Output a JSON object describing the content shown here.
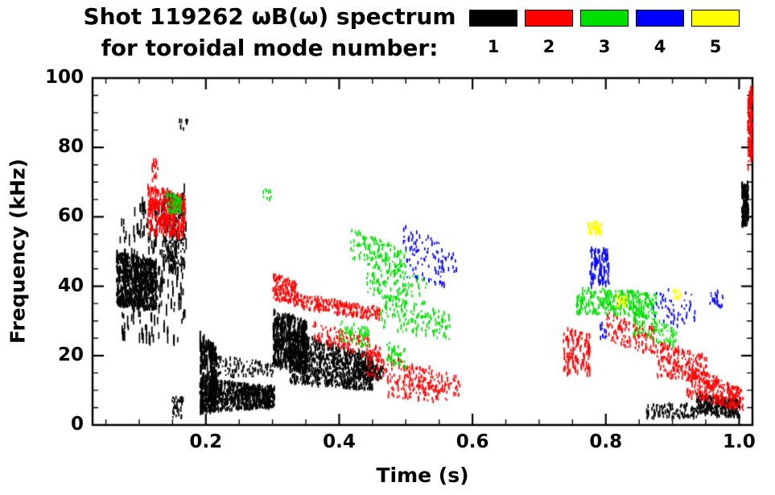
{
  "title": {
    "line1": "Shot 119262 ωB(ω) spectrum",
    "line2": "for toroidal mode number:"
  },
  "chart_data": {
    "type": "scatter",
    "title": "Shot 119262 ωB(ω) spectrum for toroidal mode number",
    "xlabel": "Time (s)",
    "ylabel": "Frequency (kHz)",
    "xlim": [
      0.03,
      1.02
    ],
    "ylim": [
      0,
      100
    ],
    "grid": false,
    "legend_position": "top-right",
    "x_major_ticks": [
      0.2,
      0.4,
      0.6,
      0.8,
      1.0
    ],
    "x_tick_labels": [
      "0.2",
      "0.4",
      "0.6",
      "0.8",
      "1.0"
    ],
    "x_minor_step": 0.05,
    "y_major_ticks": [
      0,
      20,
      40,
      60,
      80,
      100
    ],
    "y_tick_labels": [
      "0",
      "20",
      "40",
      "60",
      "80",
      "100"
    ],
    "y_minor_step": 5,
    "series": [
      {
        "name": "1",
        "color": "#000000",
        "clusters": [
          {
            "t": [
              0.065,
              0.125
            ],
            "fa": [
              34,
              50
            ],
            "fb": [
              33,
              47
            ],
            "n": 900
          },
          {
            "t": [
              0.07,
              0.17
            ],
            "fa": [
              24,
              62
            ],
            "fb": [
              24,
              69
            ],
            "n": 240,
            "len": [
              5,
              16
            ]
          },
          {
            "t": [
              0.135,
              0.168
            ],
            "fa": [
              44,
              66
            ],
            "fb": [
              44,
              65
            ],
            "n": 220
          },
          {
            "t": [
              0.158,
              0.172
            ],
            "fa": [
              84,
              88
            ],
            "fb": [
              85,
              88
            ],
            "n": 12
          },
          {
            "t": [
              0.148,
              0.165
            ],
            "fa": [
              2,
              8
            ],
            "fb": [
              2,
              8
            ],
            "n": 40
          },
          {
            "t": [
              0.19,
              0.215
            ],
            "fa": [
              4,
              26
            ],
            "fb": [
              4,
              22
            ],
            "n": 240,
            "len": [
              4,
              14
            ]
          },
          {
            "t": [
              0.205,
              0.302
            ],
            "fa": [
              4,
              13
            ],
            "fb": [
              5,
              11
            ],
            "n": 800
          },
          {
            "t": [
              0.21,
              0.3
            ],
            "fa": [
              14,
              20
            ],
            "fb": [
              14,
              18
            ],
            "n": 110
          },
          {
            "t": [
              0.3,
              0.35
            ],
            "fa": [
              17,
              33
            ],
            "fb": [
              15,
              30
            ],
            "n": 500,
            "len": [
              3,
              9
            ]
          },
          {
            "t": [
              0.325,
              0.45
            ],
            "fa": [
              12,
              27
            ],
            "fb": [
              10,
              20
            ],
            "n": 900
          },
          {
            "t": [
              0.42,
              0.465
            ],
            "fa": [
              13,
              19
            ],
            "fb": [
              13,
              17
            ],
            "n": 140
          },
          {
            "t": [
              0.86,
              0.935
            ],
            "fa": [
              2,
              6
            ],
            "fb": [
              2,
              6
            ],
            "n": 110
          },
          {
            "t": [
              0.935,
              1.0
            ],
            "fa": [
              3,
              9
            ],
            "fb": [
              2,
              7
            ],
            "n": 320
          },
          {
            "t": [
              1.003,
              1.013
            ],
            "fa": [
              57,
              70
            ],
            "fb": [
              58,
              70
            ],
            "n": 130,
            "len": [
              3,
              9
            ]
          }
        ]
      },
      {
        "name": "2",
        "color": "#ff0000",
        "clusters": [
          {
            "t": [
              0.112,
              0.168
            ],
            "fa": [
              55,
              69
            ],
            "fb": [
              54,
              66
            ],
            "n": 300,
            "len": [
              3,
              9
            ]
          },
          {
            "t": [
              0.118,
              0.128
            ],
            "fa": [
              70,
              78
            ],
            "fb": [
              70,
              77
            ],
            "n": 22
          },
          {
            "t": [
              0.3,
              0.335
            ],
            "fa": [
              36,
              44
            ],
            "fb": [
              35,
              41
            ],
            "n": 150
          },
          {
            "t": [
              0.33,
              0.46
            ],
            "fa": [
              34,
              38
            ],
            "fb": [
              30,
              34
            ],
            "n": 240
          },
          {
            "t": [
              0.36,
              0.46
            ],
            "fa": [
              24,
              30
            ],
            "fb": [
              18,
              24
            ],
            "n": 130
          },
          {
            "t": [
              0.44,
              0.58
            ],
            "fa": [
              14,
              22
            ],
            "fb": [
              8,
              14
            ],
            "n": 200
          },
          {
            "t": [
              0.47,
              0.565
            ],
            "fa": [
              8,
              13
            ],
            "fb": [
              6,
              10
            ],
            "n": 70
          },
          {
            "t": [
              0.735,
              0.775
            ],
            "fa": [
              14,
              28
            ],
            "fb": [
              14,
              26
            ],
            "n": 110,
            "len": [
              3,
              8
            ]
          },
          {
            "t": [
              0.8,
              0.875
            ],
            "fa": [
              24,
              33
            ],
            "fb": [
              20,
              28
            ],
            "n": 130
          },
          {
            "t": [
              0.875,
              0.95
            ],
            "fa": [
              14,
              24
            ],
            "fb": [
              12,
              20
            ],
            "n": 190
          },
          {
            "t": [
              0.92,
              1.005
            ],
            "fa": [
              8,
              18
            ],
            "fb": [
              4,
              10
            ],
            "n": 280
          },
          {
            "t": [
              1.012,
              1.023
            ],
            "fa": [
              74,
              97
            ],
            "fb": [
              75,
              97
            ],
            "n": 150,
            "len": [
              3,
              9
            ]
          }
        ]
      },
      {
        "name": "3",
        "color": "#00dd00",
        "clusters": [
          {
            "t": [
              0.14,
              0.162
            ],
            "fa": [
              61,
              67
            ],
            "fb": [
              61,
              66
            ],
            "n": 70
          },
          {
            "t": [
              0.285,
              0.297
            ],
            "fa": [
              65,
              68
            ],
            "fb": [
              65,
              68
            ],
            "n": 10
          },
          {
            "t": [
              0.415,
              0.5
            ],
            "fa": [
              48,
              57
            ],
            "fb": [
              42,
              50
            ],
            "n": 140
          },
          {
            "t": [
              0.44,
              0.53
            ],
            "fa": [
              38,
              47
            ],
            "fb": [
              34,
              42
            ],
            "n": 110
          },
          {
            "t": [
              0.46,
              0.565
            ],
            "fa": [
              28,
              38
            ],
            "fb": [
              24,
              32
            ],
            "n": 150
          },
          {
            "t": [
              0.4,
              0.445
            ],
            "fa": [
              24,
              30
            ],
            "fb": [
              22,
              28
            ],
            "n": 60
          },
          {
            "t": [
              0.47,
              0.5
            ],
            "fa": [
              18,
              24
            ],
            "fb": [
              16,
              22
            ],
            "n": 45
          },
          {
            "t": [
              0.755,
              0.875
            ],
            "fa": [
              32,
              40
            ],
            "fb": [
              31,
              38
            ],
            "n": 320
          },
          {
            "t": [
              0.84,
              0.905
            ],
            "fa": [
              26,
              33
            ],
            "fb": [
              22,
              28
            ],
            "n": 90
          }
        ]
      },
      {
        "name": "4",
        "color": "#0000ff",
        "clusters": [
          {
            "t": [
              0.495,
              0.575
            ],
            "fa": [
              50,
              58
            ],
            "fb": [
              44,
              50
            ],
            "n": 70
          },
          {
            "t": [
              0.5,
              0.56
            ],
            "fa": [
              42,
              48
            ],
            "fb": [
              40,
              45
            ],
            "n": 35
          },
          {
            "t": [
              0.775,
              0.805
            ],
            "fa": [
              40,
              52
            ],
            "fb": [
              40,
              50
            ],
            "n": 90,
            "len": [
              3,
              9
            ]
          },
          {
            "t": [
              0.79,
              0.8
            ],
            "fa": [
              25,
              30
            ],
            "fb": [
              25,
              30
            ],
            "n": 12
          },
          {
            "t": [
              0.87,
              0.935
            ],
            "fa": [
              28,
              40
            ],
            "fb": [
              28,
              38
            ],
            "n": 55
          },
          {
            "t": [
              0.955,
              0.975
            ],
            "fa": [
              34,
              40
            ],
            "fb": [
              34,
              38
            ],
            "n": 22
          }
        ]
      },
      {
        "name": "5",
        "color": "#ffff00",
        "clusters": [
          {
            "t": [
              0.772,
              0.792
            ],
            "fa": [
              55,
              59
            ],
            "fb": [
              55,
              58
            ],
            "n": 55
          },
          {
            "t": [
              0.815,
              0.83
            ],
            "fa": [
              34,
              38
            ],
            "fb": [
              34,
              37
            ],
            "n": 25
          },
          {
            "t": [
              0.9,
              0.912
            ],
            "fa": [
              36,
              40
            ],
            "fb": [
              36,
              39
            ],
            "n": 14
          }
        ]
      }
    ]
  }
}
